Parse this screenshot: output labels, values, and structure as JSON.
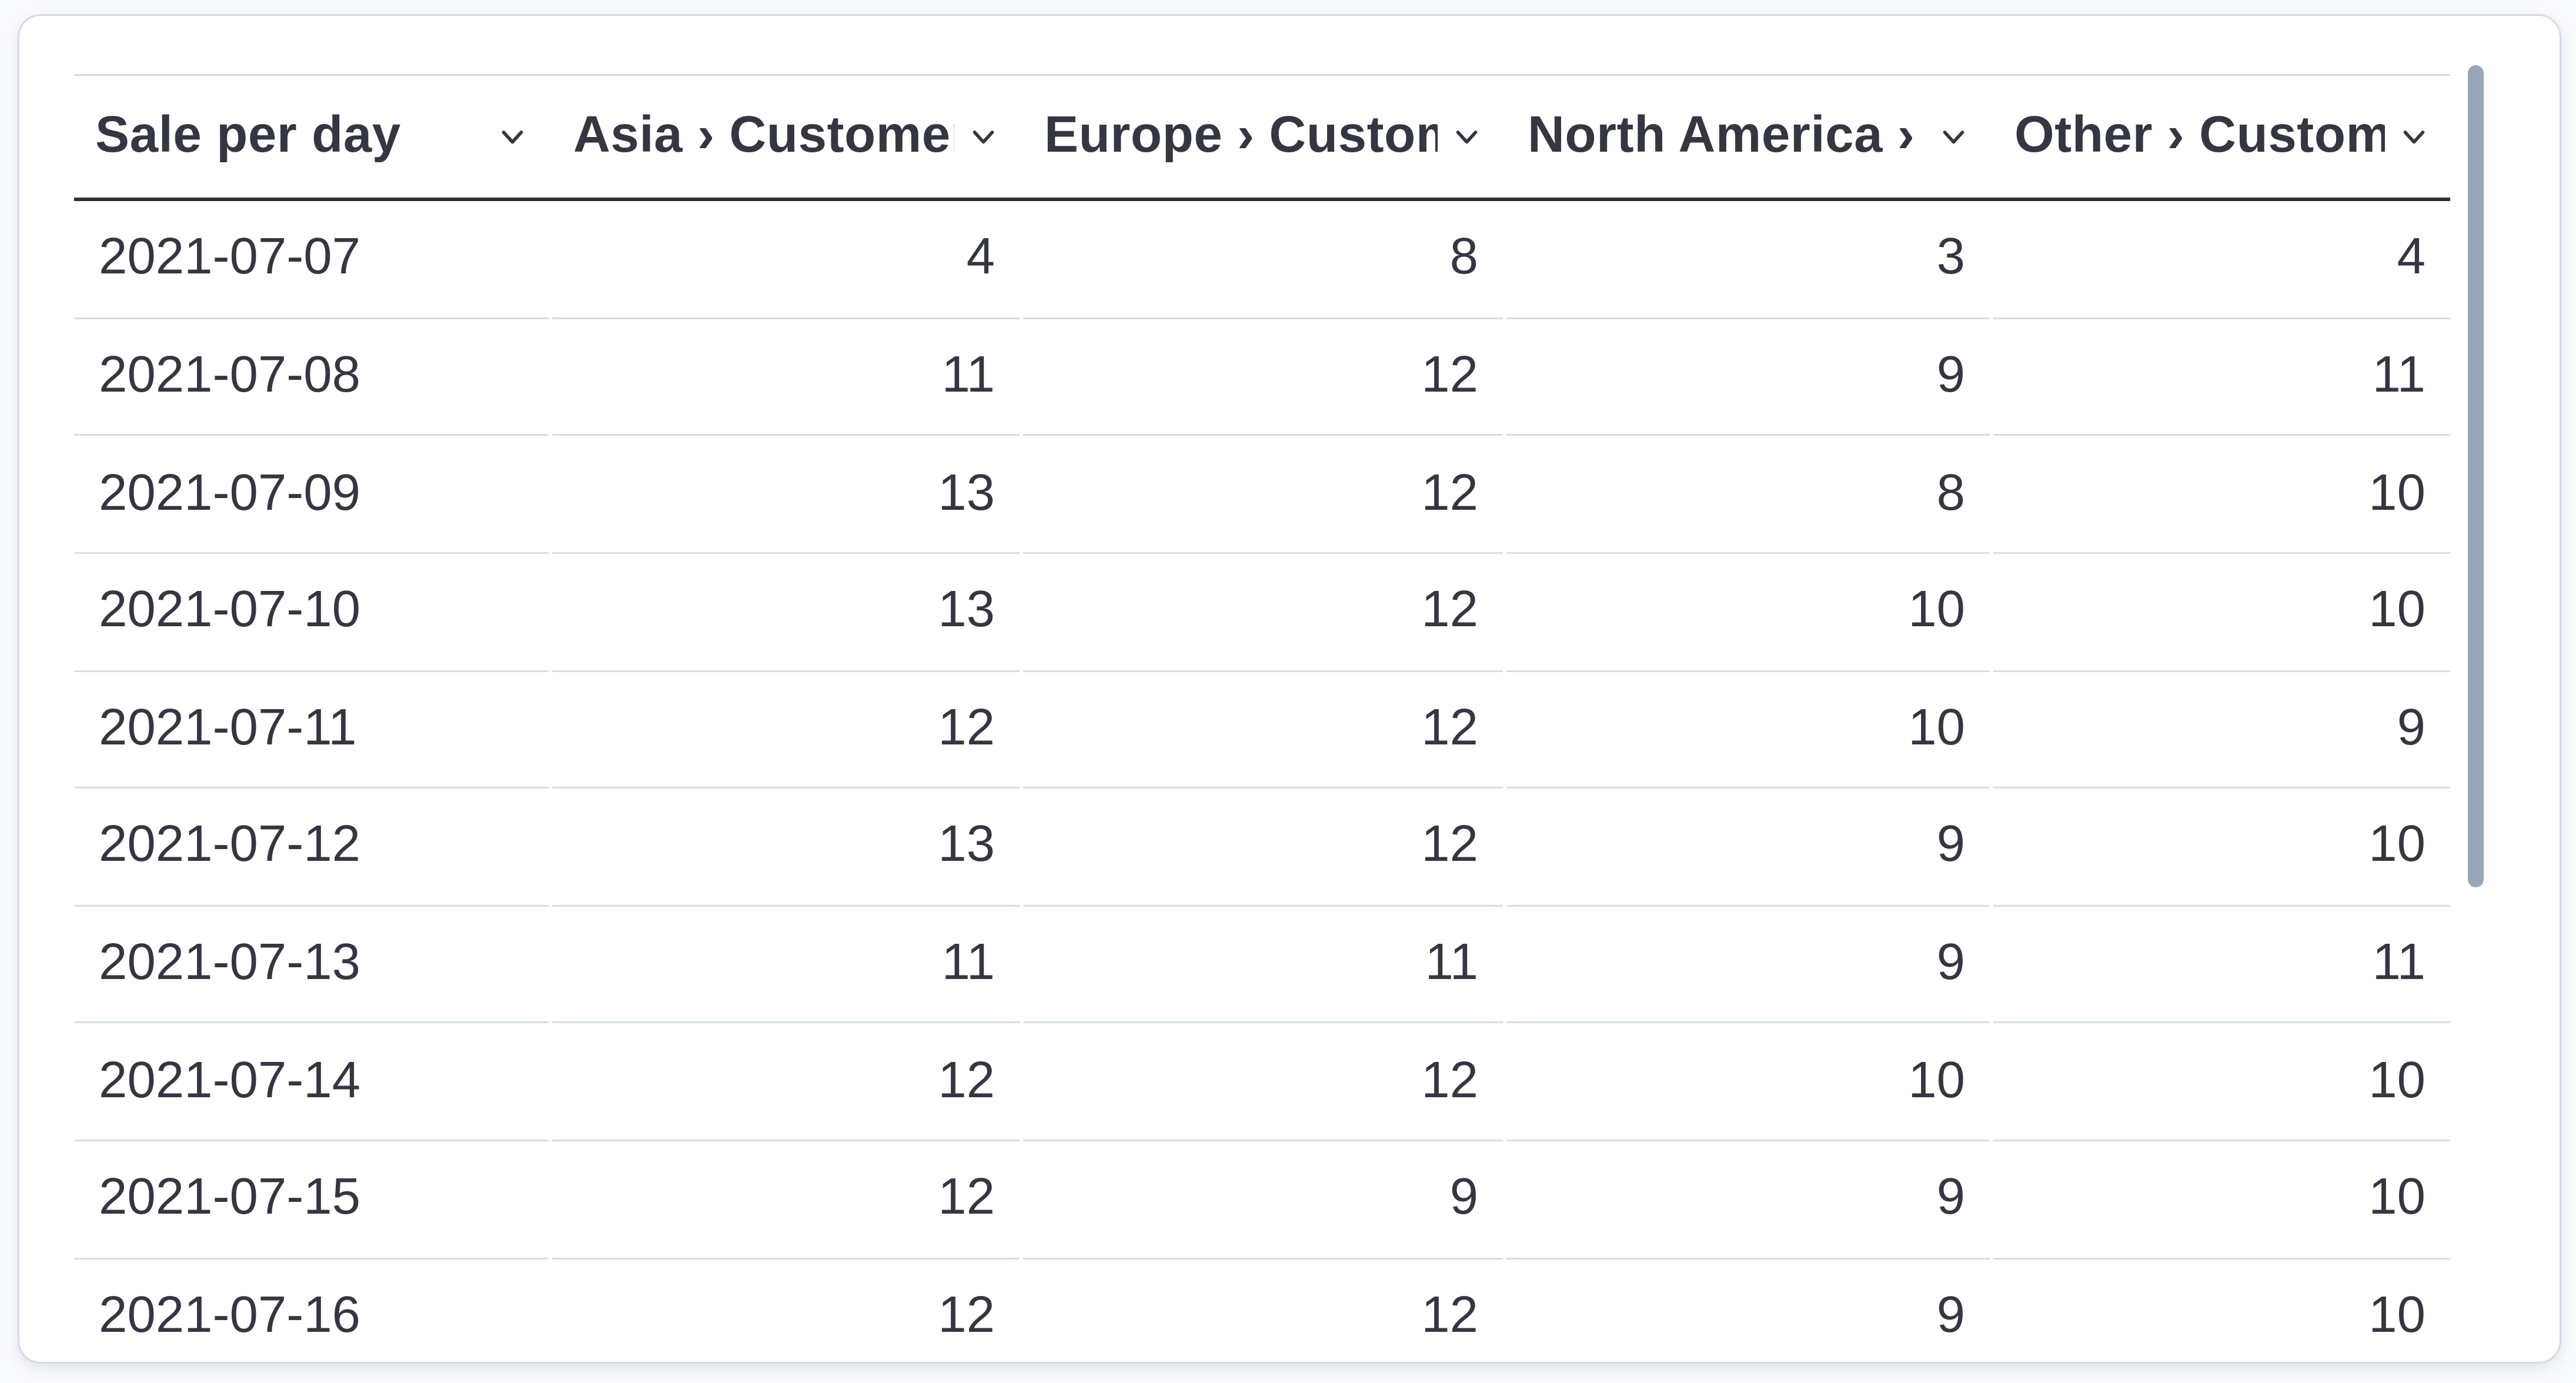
{
  "table": {
    "title": "Sale per day",
    "header_sort_icon": "chevron-down-icon",
    "columns": [
      {
        "id": "sale-per-day",
        "label": "Sale per day",
        "align": "left"
      },
      {
        "id": "asia-customers",
        "label": "Asia › Customers",
        "align": "right"
      },
      {
        "id": "europe-customers",
        "label": "Europe › Customers",
        "align": "right"
      },
      {
        "id": "north-america-customers",
        "label": "North America › Customers",
        "align": "right"
      },
      {
        "id": "other-customers",
        "label": "Other › Customers",
        "align": "right"
      }
    ],
    "rows": [
      {
        "cells": [
          "2021-07-07",
          4,
          8,
          3,
          4
        ]
      },
      {
        "cells": [
          "2021-07-08",
          11,
          12,
          9,
          11
        ]
      },
      {
        "cells": [
          "2021-07-09",
          13,
          12,
          8,
          10
        ]
      },
      {
        "cells": [
          "2021-07-10",
          13,
          12,
          10,
          10
        ]
      },
      {
        "cells": [
          "2021-07-11",
          12,
          12,
          10,
          9
        ]
      },
      {
        "cells": [
          "2021-07-12",
          13,
          12,
          9,
          10
        ]
      },
      {
        "cells": [
          "2021-07-13",
          11,
          11,
          9,
          11
        ]
      },
      {
        "cells": [
          "2021-07-14",
          12,
          12,
          10,
          10
        ]
      },
      {
        "cells": [
          "2021-07-15",
          12,
          9,
          9,
          10
        ]
      },
      {
        "cells": [
          "2021-07-16",
          12,
          12,
          9,
          10
        ]
      }
    ]
  },
  "scrollbar": {
    "orientation": "vertical"
  },
  "colors": {
    "text": "#343741",
    "header_underline": "#2c2f36",
    "row_separator": "#d6dce8",
    "grid_top_border": "#d3dae6",
    "panel_border": "#d3dae6",
    "panel_background": "#ffffff",
    "page_background": "#fafbfd",
    "scrollbar_thumb": "#9aa5b8"
  }
}
